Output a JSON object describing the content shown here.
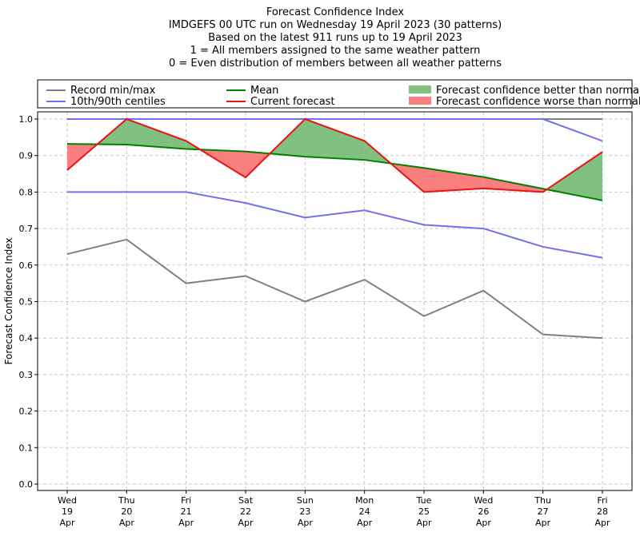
{
  "chart_data": {
    "type": "line",
    "title_lines": [
      "Forecast Confidence Index",
      "IMDGEFS 00 UTC run on Wednesday 19 April 2023 (30 patterns)",
      "Based on the latest 911 runs up to 19 April 2023",
      "1 = All members assigned to the same weather pattern",
      "0 = Even distribution of members between all weather patterns"
    ],
    "ylabel": "Forecast Confidence Index",
    "xlabel": "",
    "ylim": [
      0,
      1.0
    ],
    "yticks": [
      "0.0",
      "0.1",
      "0.2",
      "0.3",
      "0.4",
      "0.5",
      "0.6",
      "0.7",
      "0.8",
      "0.9",
      "1.0"
    ],
    "grid": true,
    "legend_position": "top",
    "categories": [
      [
        "Wed",
        "19",
        "Apr"
      ],
      [
        "Thu",
        "20",
        "Apr"
      ],
      [
        "Fri",
        "21",
        "Apr"
      ],
      [
        "Sat",
        "22",
        "Apr"
      ],
      [
        "Sun",
        "23",
        "Apr"
      ],
      [
        "Mon",
        "24",
        "Apr"
      ],
      [
        "Tue",
        "25",
        "Apr"
      ],
      [
        "Wed",
        "26",
        "Apr"
      ],
      [
        "Thu",
        "27",
        "Apr"
      ],
      [
        "Fri",
        "28",
        "Apr"
      ]
    ],
    "series": [
      {
        "name": "Record min/max",
        "key": "record_max",
        "color": "#808080",
        "values": [
          1.0,
          1.0,
          1.0,
          1.0,
          1.0,
          1.0,
          1.0,
          1.0,
          1.0,
          1.0
        ]
      },
      {
        "name": "Record min/max",
        "key": "record_min",
        "color": "#808080",
        "values": [
          0.63,
          0.67,
          0.55,
          0.57,
          0.5,
          0.56,
          0.46,
          0.53,
          0.41,
          0.4
        ]
      },
      {
        "name": "10th/90th centiles",
        "key": "p90",
        "color": "#7070f0",
        "values": [
          1.0,
          1.0,
          1.0,
          1.0,
          1.0,
          1.0,
          1.0,
          1.0,
          1.0,
          0.94
        ]
      },
      {
        "name": "10th/90th centiles",
        "key": "p10",
        "color": "#7070f0",
        "values": [
          0.8,
          0.8,
          0.8,
          0.77,
          0.73,
          0.75,
          0.71,
          0.7,
          0.65,
          0.62
        ]
      },
      {
        "name": "Mean",
        "key": "mean",
        "color": "#008000",
        "values": [
          0.932,
          0.93,
          0.918,
          0.911,
          0.897,
          0.888,
          0.866,
          0.841,
          0.809,
          0.777
        ]
      },
      {
        "name": "Current forecast",
        "key": "current",
        "color": "#ee1111",
        "values": [
          0.86,
          1.0,
          0.94,
          0.84,
          1.0,
          0.94,
          0.8,
          0.81,
          0.8,
          0.91
        ]
      }
    ],
    "legend": [
      {
        "label": "Record min/max",
        "kind": "line",
        "color": "#808080"
      },
      {
        "label": "Mean",
        "kind": "line",
        "color": "#008000"
      },
      {
        "label": "Forecast confidence better than normal",
        "kind": "patch",
        "color": "#80c080"
      },
      {
        "label": "10th/90th centiles",
        "kind": "line",
        "color": "#7070f0"
      },
      {
        "label": "Current forecast",
        "kind": "line",
        "color": "#ee1111"
      },
      {
        "label": "Forecast confidence worse than normal",
        "kind": "patch",
        "color": "#fa8080"
      }
    ],
    "fill_colors": {
      "better": "#80c080",
      "worse": "#fa8080"
    }
  }
}
